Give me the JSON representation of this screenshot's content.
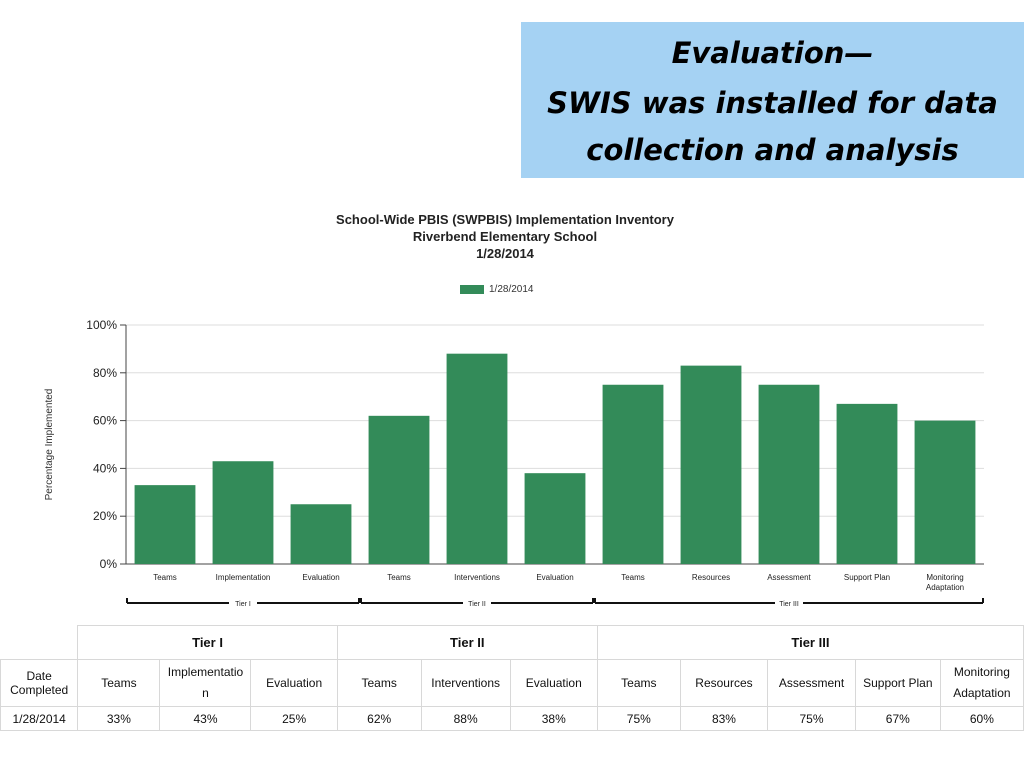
{
  "slide": {
    "title_lines": [
      "Evaluation—",
      "SWIS was installed for data",
      "collection and analysis"
    ]
  },
  "colors": {
    "bar": "#338b59",
    "title_box": "#a5d2f3"
  },
  "chart_data": {
    "type": "bar",
    "title": "School-Wide PBIS (SWPBIS) Implementation Inventory",
    "subtitle": "Riverbend Elementary School",
    "date": "1/28/2014",
    "xlabel": "",
    "ylabel": "Percentage Implemented",
    "ylim": [
      0,
      100
    ],
    "yticks": [
      "0%",
      "20%",
      "40%",
      "60%",
      "80%",
      "100%"
    ],
    "grid": true,
    "legend": "top-center",
    "categories": [
      "Teams",
      "Implementation",
      "Evaluation",
      "Teams",
      "Interventions",
      "Evaluation",
      "Teams",
      "Resources",
      "Assessment",
      "Support Plan",
      "Monitoring Adaptation"
    ],
    "category_label_lines": [
      [
        "Teams"
      ],
      [
        "Implementation"
      ],
      [
        "Evaluation"
      ],
      [
        "Teams"
      ],
      [
        "Interventions"
      ],
      [
        "Evaluation"
      ],
      [
        "Teams"
      ],
      [
        "Resources"
      ],
      [
        "Assessment"
      ],
      [
        "Support Plan"
      ],
      [
        "Monitoring",
        "Adaptation"
      ]
    ],
    "groups": [
      {
        "name": "Tier I",
        "start": 0,
        "end": 2
      },
      {
        "name": "Tier II",
        "start": 3,
        "end": 5
      },
      {
        "name": "Tier III",
        "start": 6,
        "end": 10
      }
    ],
    "series": [
      {
        "name": "1/28/2014",
        "values": [
          33,
          43,
          25,
          62,
          88,
          38,
          75,
          83,
          75,
          67,
          60
        ]
      }
    ]
  },
  "table": {
    "tiers": [
      {
        "label": "Tier I",
        "span": 3
      },
      {
        "label": "Tier II",
        "span": 3
      },
      {
        "label": "Tier III",
        "span": 5
      }
    ],
    "date_header_lines": [
      "Date",
      "Completed"
    ],
    "columns": [
      [
        "Teams"
      ],
      [
        "Implementatio",
        "n"
      ],
      [
        "Evaluation"
      ],
      [
        "Teams"
      ],
      [
        "Interventions"
      ],
      [
        "Evaluation"
      ],
      [
        "Teams"
      ],
      [
        "Resources"
      ],
      [
        "Assessment"
      ],
      [
        "Support Plan"
      ],
      [
        "Monitoring",
        "Adaptation"
      ]
    ],
    "rows": [
      {
        "date": "1/28/2014",
        "values": [
          "33%",
          "43%",
          "25%",
          "62%",
          "88%",
          "38%",
          "75%",
          "83%",
          "75%",
          "67%",
          "60%"
        ]
      }
    ]
  }
}
